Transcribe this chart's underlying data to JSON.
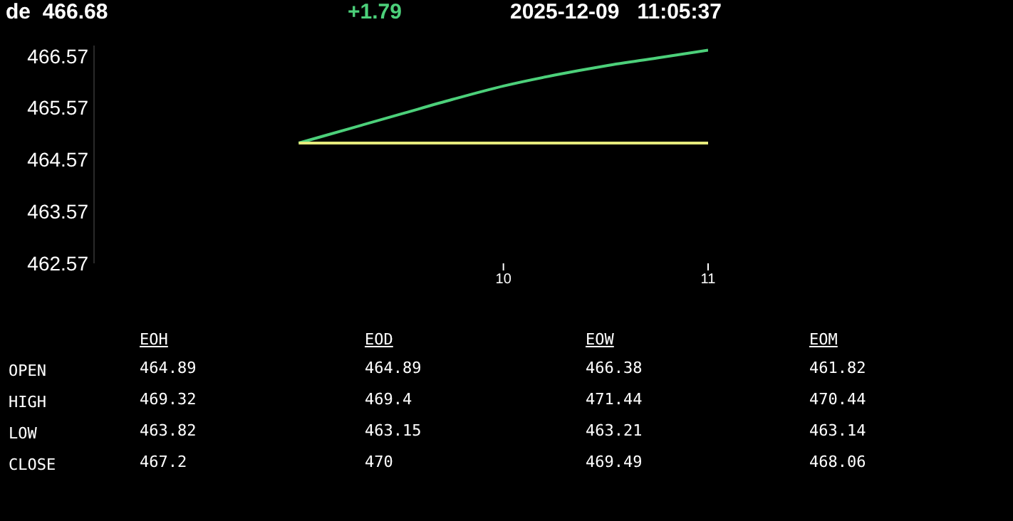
{
  "chart_data": [
    {
      "type": "line",
      "title": "de  466.68",
      "subtitle": "+1.79",
      "annotations": [
        "2025-12-09   11:05:37"
      ],
      "x": [
        9,
        9.25,
        9.5,
        9.75,
        10,
        10.25,
        10.5,
        10.75,
        11
      ],
      "series": [
        {
          "color": "#4cd07a",
          "values": [
            464.89,
            465.17,
            465.45,
            465.73,
            465.99,
            466.2,
            466.38,
            466.53,
            466.68
          ]
        },
        {
          "color": "#e6ea7c",
          "values": [
            464.89,
            464.89,
            464.89,
            464.89,
            464.89,
            464.89,
            464.89,
            464.89,
            464.89
          ]
        }
      ],
      "xlim": [
        8,
        11
      ],
      "xticks": [
        10,
        11
      ],
      "ylim": [
        462.57,
        466.77
      ],
      "yticks": [
        462.57,
        463.57,
        464.57,
        465.57,
        466.57
      ],
      "grid": false,
      "legend": false,
      "marker": "none",
      "line_style": "solid"
    },
    {
      "type": "other",
      "categories": [
        "EOH",
        "EOD",
        "EOW",
        "EOM"
      ],
      "series": [
        {
          "name": "OPEN",
          "values": [
            464.89,
            464.89,
            466.38,
            461.82
          ]
        },
        {
          "name": "HIGH",
          "values": [
            469.32,
            469.4,
            471.44,
            470.44
          ]
        },
        {
          "name": "LOW",
          "values": [
            463.82,
            463.15,
            463.21,
            463.14
          ]
        },
        {
          "name": "CLOSE",
          "values": [
            467.2,
            470,
            469.49,
            468.06
          ]
        }
      ],
      "data_labels": true
    }
  ]
}
